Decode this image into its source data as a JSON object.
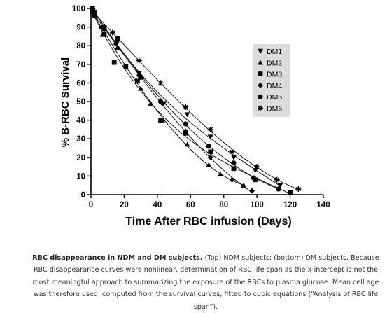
{
  "chart_data": {
    "type": "scatter",
    "title": "",
    "xlabel": "Time After RBC infusion (Days)",
    "ylabel": "% B-RBC Survival",
    "xlim": [
      0,
      140
    ],
    "ylim": [
      0,
      100
    ],
    "xticks": [
      0,
      20,
      40,
      60,
      80,
      100,
      120,
      140
    ],
    "yticks": [
      0,
      10,
      20,
      30,
      40,
      50,
      60,
      70,
      80,
      90,
      100
    ],
    "grid": false,
    "legend": "top-right",
    "series": [
      {
        "name": "DM1",
        "marker": "triangle-down",
        "x": [
          1,
          2,
          8,
          16,
          29,
          44,
          58,
          72,
          86,
          99,
          114
        ],
        "y": [
          100,
          98,
          90,
          82,
          65,
          49,
          43,
          31,
          20,
          13,
          5
        ]
      },
      {
        "name": "DM2",
        "marker": "triangle-up",
        "x": [
          1,
          2,
          7,
          16,
          30,
          36,
          43,
          58,
          71,
          78,
          92
        ],
        "y": [
          98,
          97,
          86,
          79,
          57,
          49,
          40,
          27,
          16,
          11,
          5
        ]
      },
      {
        "name": "DM3",
        "marker": "square",
        "x": [
          1,
          2,
          8,
          14,
          21,
          28,
          42,
          57,
          72,
          86,
          99,
          120
        ],
        "y": [
          99,
          96,
          86,
          71,
          69,
          61,
          40,
          33,
          23,
          14,
          8,
          1
        ]
      },
      {
        "name": "DM4",
        "marker": "diamond",
        "x": [
          1,
          2,
          6,
          15,
          29,
          43,
          57,
          72,
          85,
          97
        ],
        "y": [
          99,
          97,
          90,
          81,
          64,
          49,
          34,
          20,
          8,
          2
        ]
      },
      {
        "name": "DM5",
        "marker": "circle",
        "x": [
          1,
          2,
          8,
          16,
          30,
          42,
          57,
          71,
          86,
          98,
          113
        ],
        "y": [
          99,
          98,
          89,
          84,
          63,
          50,
          38,
          26,
          17,
          9,
          3
        ]
      },
      {
        "name": "DM6",
        "marker": "asterisk",
        "x": [
          1,
          2,
          8,
          13,
          29,
          42,
          57,
          72,
          85,
          100,
          112,
          125
        ],
        "y": [
          100,
          97,
          90,
          87,
          72,
          60,
          47,
          35,
          23,
          15,
          8,
          3
        ]
      }
    ]
  },
  "caption": {
    "bold": "RBC disappearance in NDM and DM subjects.",
    "text": " (Top) NDM subjects; (bottom) DM subjects. Because RBC disappearance curves were nonlinear, determination of RBC life span as the x-intercept is not the most meaningful approach to summarizing the exposure of the RBCs to plasma glucose. Mean cell age was therefore used, computed from the survival curves, fitted to cubic equations (“Analysis of RBC life span”)."
  }
}
